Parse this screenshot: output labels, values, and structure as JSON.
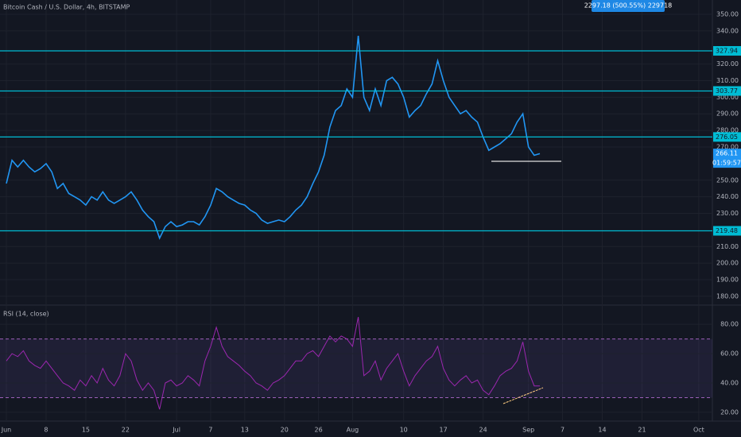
{
  "chart_data": [
    {
      "type": "line",
      "title": "Bitcoin Cash / U.S. Dollar, 4h, BITSTAMP",
      "color": "#2196f3",
      "x": [
        0,
        1,
        2,
        3,
        4,
        5,
        6,
        7,
        8,
        9,
        10,
        11,
        12,
        13,
        14,
        15,
        16,
        17,
        18,
        19,
        20,
        21,
        22,
        23,
        24,
        25,
        26,
        27,
        28,
        29,
        30,
        31,
        32,
        33,
        34,
        35,
        36,
        37,
        38,
        39,
        40,
        41,
        42,
        43,
        44,
        45,
        46,
        47,
        48,
        49,
        50,
        51,
        52,
        53,
        54,
        55,
        56,
        57,
        58,
        59,
        60,
        61,
        62,
        63,
        64,
        65,
        66,
        67,
        68,
        69,
        70,
        71,
        72,
        73,
        74,
        75,
        76,
        77,
        78,
        79,
        80,
        81,
        82,
        83,
        84,
        85,
        86,
        87,
        88,
        89,
        90,
        91,
        92,
        93,
        94
      ],
      "values": [
        248,
        262,
        258,
        262,
        258,
        255,
        257,
        260,
        255,
        245,
        248,
        242,
        240,
        238,
        235,
        240,
        238,
        243,
        238,
        236,
        238,
        240,
        243,
        238,
        232,
        228,
        225,
        215,
        222,
        225,
        222,
        223,
        225,
        225,
        223,
        228,
        235,
        245,
        243,
        240,
        238,
        236,
        235,
        232,
        230,
        226,
        224,
        225,
        226,
        225,
        228,
        232,
        235,
        240,
        248,
        255,
        265,
        282,
        292,
        295,
        305,
        300,
        337,
        300,
        292,
        305,
        295,
        310,
        312,
        308,
        300,
        288,
        292,
        295,
        302,
        308,
        322,
        310,
        300,
        295,
        290,
        292,
        288,
        285,
        276,
        268,
        270,
        272,
        275,
        278,
        285,
        290,
        270,
        265,
        266
      ],
      "xlim": [
        -1.12,
        124.4
      ],
      "ylim": [
        174.7,
        358.6
      ],
      "yticks": [
        {
          "value": 350,
          "label": "350.00"
        },
        {
          "value": 340,
          "label": "340.00"
        },
        {
          "value": 320,
          "label": "320.00"
        },
        {
          "value": 310,
          "label": "310.00"
        },
        {
          "value": 300,
          "label": "300.00"
        },
        {
          "value": 290,
          "label": "290.00"
        },
        {
          "value": 280,
          "label": "280.00"
        },
        {
          "value": 270,
          "label": "270.00"
        },
        {
          "value": 250,
          "label": "250.00"
        },
        {
          "value": 240,
          "label": "240.00"
        },
        {
          "value": 230,
          "label": "230.00"
        },
        {
          "value": 210,
          "label": "210.00"
        },
        {
          "value": 200,
          "label": "200.00"
        },
        {
          "value": 190,
          "label": "190.00"
        },
        {
          "value": 180,
          "label": "180.00"
        }
      ],
      "levels": [
        327.94,
        303.77,
        276.05,
        219.48
      ],
      "level_color": "#00bcd4",
      "last_price": 266.11,
      "countdown": "01:59:57",
      "annotation": "2297.18 (500.55%) 229718",
      "grid": true
    },
    {
      "type": "line",
      "title": "RSI (14, close)",
      "color": "#9c27b0",
      "values": [
        55,
        60,
        58,
        62,
        55,
        52,
        50,
        55,
        50,
        45,
        40,
        38,
        35,
        42,
        38,
        45,
        40,
        50,
        42,
        38,
        45,
        60,
        55,
        42,
        35,
        40,
        35,
        22,
        40,
        42,
        38,
        40,
        45,
        42,
        38,
        55,
        65,
        78,
        65,
        58,
        55,
        52,
        48,
        45,
        40,
        38,
        35,
        40,
        42,
        45,
        50,
        55,
        55,
        60,
        62,
        58,
        65,
        72,
        68,
        72,
        70,
        65,
        85,
        45,
        48,
        55,
        42,
        50,
        55,
        60,
        48,
        38,
        45,
        50,
        55,
        58,
        65,
        50,
        42,
        38,
        42,
        45,
        40,
        42,
        35,
        32,
        38,
        45,
        48,
        50,
        55,
        68,
        48,
        38,
        38
      ],
      "ylim": [
        14,
        93.1
      ],
      "yticks": [
        {
          "value": 80,
          "label": "80.00"
        },
        {
          "value": 60,
          "label": "60.00"
        },
        {
          "value": 40,
          "label": "40.00"
        },
        {
          "value": 20,
          "label": "20.00"
        }
      ],
      "bands": [
        70,
        30
      ],
      "xticks": [
        {
          "value": 0,
          "label": "Jun"
        },
        {
          "value": 7,
          "label": "8"
        },
        {
          "value": 14,
          "label": "15"
        },
        {
          "value": 21,
          "label": "22"
        },
        {
          "value": 30,
          "label": "Jul"
        },
        {
          "value": 36,
          "label": "7"
        },
        {
          "value": 42,
          "label": "13"
        },
        {
          "value": 49,
          "label": "20"
        },
        {
          "value": 55,
          "label": "26"
        },
        {
          "value": 61,
          "label": "Aug"
        },
        {
          "value": 70,
          "label": "10"
        },
        {
          "value": 77,
          "label": "17"
        },
        {
          "value": 84,
          "label": "24"
        },
        {
          "value": 92,
          "label": "Sep"
        },
        {
          "value": 98,
          "label": "7"
        },
        {
          "value": 105,
          "label": "14"
        },
        {
          "value": 112,
          "label": "21"
        },
        {
          "value": 122,
          "label": "Oct"
        }
      ],
      "grid": true
    }
  ]
}
